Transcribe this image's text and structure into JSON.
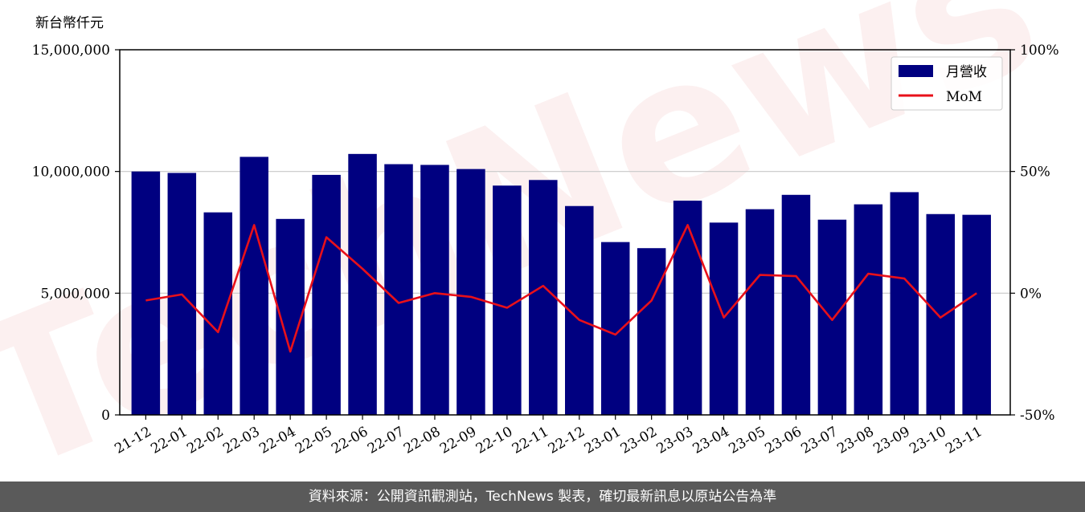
{
  "chart_data": {
    "type": "bar",
    "y_unit_label": "新台幣仟元",
    "categories": [
      "21-12",
      "22-01",
      "22-02",
      "22-03",
      "22-04",
      "22-05",
      "22-06",
      "22-07",
      "22-08",
      "22-09",
      "22-10",
      "22-11",
      "22-12",
      "23-01",
      "23-02",
      "23-03",
      "23-04",
      "23-05",
      "23-06",
      "23-07",
      "23-08",
      "23-09",
      "23-10",
      "23-11"
    ],
    "series": [
      {
        "name": "月營收",
        "type": "bar",
        "axis": "left",
        "color": "#000080",
        "values": [
          10000000,
          9940000,
          8320000,
          10600000,
          8050000,
          9860000,
          10720000,
          10300000,
          10270000,
          10100000,
          9420000,
          9650000,
          8580000,
          7100000,
          6850000,
          8800000,
          7900000,
          8450000,
          9040000,
          8020000,
          8650000,
          9150000,
          8250000,
          8220000
        ]
      },
      {
        "name": "MoM",
        "type": "line",
        "axis": "right",
        "color": "#e8101a",
        "values": [
          -3,
          -0.5,
          -16,
          28,
          -24,
          23,
          10,
          -4,
          0,
          -1.5,
          -6,
          3,
          -11,
          -17,
          -3,
          28,
          -10,
          7.5,
          7,
          -11,
          8,
          6,
          -10,
          0
        ]
      }
    ],
    "left_axis": {
      "ylim": [
        0,
        15000000
      ],
      "ticks": [
        0,
        5000000,
        10000000,
        15000000
      ],
      "tick_labels": [
        "0",
        "5,000,000",
        "10,000,000",
        "15,000,000"
      ]
    },
    "right_axis": {
      "ylim": [
        -50,
        100
      ],
      "ticks": [
        -50,
        0,
        50,
        100
      ],
      "tick_labels": [
        "-50%",
        "0%",
        "50%",
        "100%"
      ]
    },
    "grid": "horizontal",
    "legend_position": "top-right"
  },
  "footer": {
    "text": "資料來源：公開資訊觀測站，TechNews 製表，確切最新訊息以原站公告為準"
  },
  "watermark": "TechNews"
}
